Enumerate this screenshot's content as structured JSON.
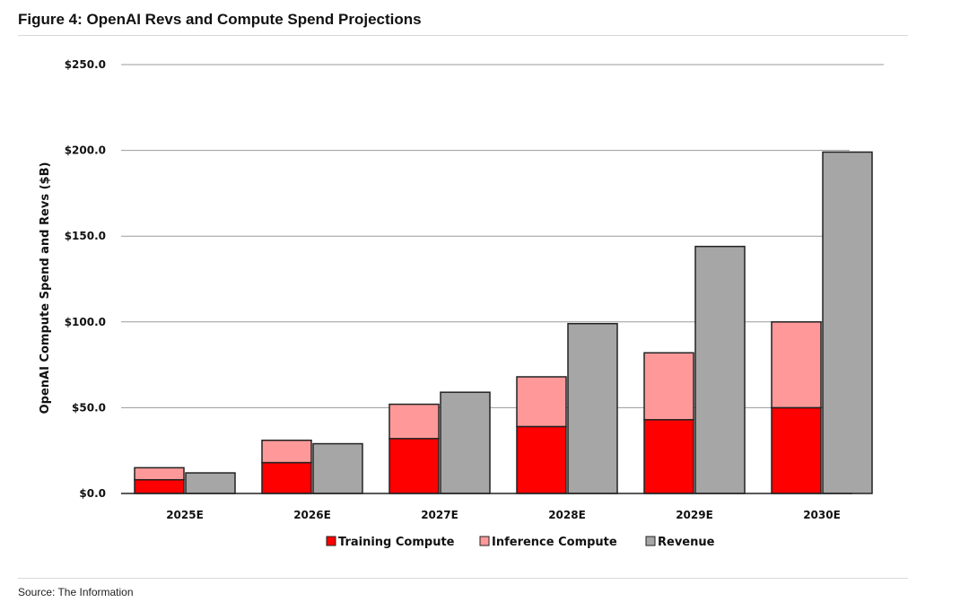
{
  "figure": {
    "title": "Figure 4: OpenAI Revs and Compute Spend Projections",
    "source": "Source: The Information"
  },
  "chart_data": {
    "type": "bar",
    "title": "",
    "xlabel": "",
    "ylabel": "OpenAI Compute Spend and Revs ($B)",
    "ylim": [
      0,
      250
    ],
    "yticks": [
      0,
      50,
      100,
      150,
      200,
      250
    ],
    "ytick_labels": [
      "$0.0",
      "$50.0",
      "$100.0",
      "$150.0",
      "$200.0",
      "$250.0"
    ],
    "grid": true,
    "legend_position": "bottom",
    "categories": [
      "2025E",
      "2026E",
      "2027E",
      "2028E",
      "2029E",
      "2030E"
    ],
    "series": [
      {
        "name": "Training Compute",
        "stack": "compute",
        "color": "#ff0000",
        "values": [
          8,
          18,
          32,
          39,
          43,
          50
        ]
      },
      {
        "name": "Inference Compute",
        "stack": "compute",
        "color": "#ff9999",
        "values": [
          7,
          13,
          20,
          29,
          39,
          50
        ]
      },
      {
        "name": "Revenue",
        "stack": "revenue",
        "color": "#a6a6a6",
        "values": [
          12,
          29,
          59,
          99,
          144,
          199
        ]
      }
    ]
  }
}
